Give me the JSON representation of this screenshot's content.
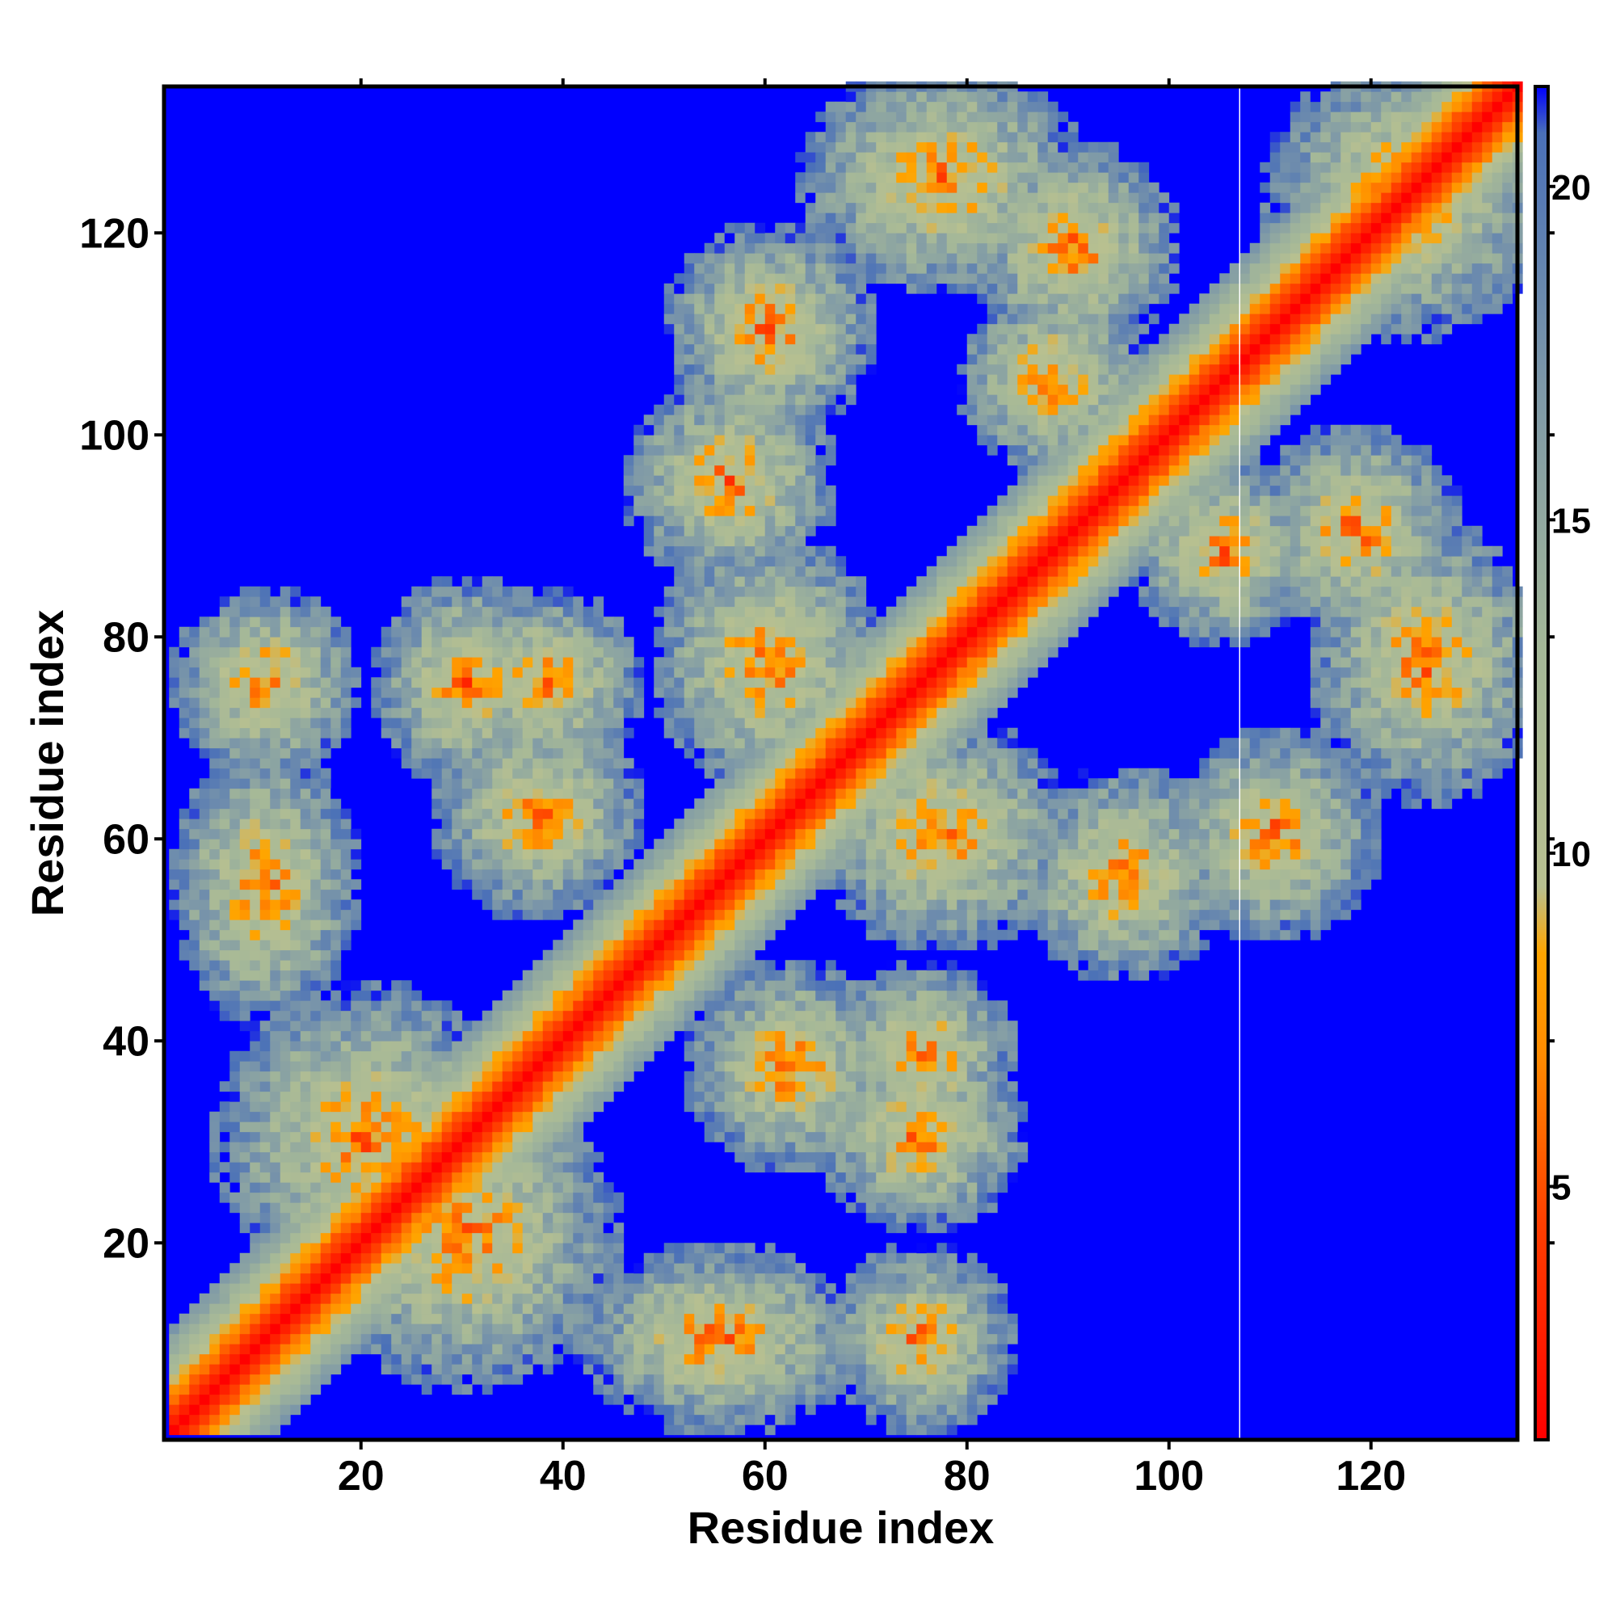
{
  "chart_data": {
    "type": "heatmap",
    "title": "",
    "xlabel": "Residue index",
    "ylabel": "Residue index",
    "n_residues": 134,
    "xlim": [
      1,
      134
    ],
    "ylim": [
      1,
      134
    ],
    "x_ticks": [
      20,
      40,
      60,
      80,
      100,
      120
    ],
    "y_ticks": [
      20,
      40,
      60,
      80,
      100,
      120
    ],
    "colorbar": {
      "ticks": [
        5,
        10,
        15,
        20
      ],
      "range": [
        1.2,
        21.5
      ],
      "stops": [
        {
          "value": 1.2,
          "color": "#ff0000"
        },
        {
          "value": 4.5,
          "color": "#ff4000"
        },
        {
          "value": 7.0,
          "color": "#ff8c00"
        },
        {
          "value": 8.5,
          "color": "#ffa500"
        },
        {
          "value": 9.5,
          "color": "#b8c090"
        },
        {
          "value": 13.0,
          "color": "#a5b898"
        },
        {
          "value": 17.0,
          "color": "#7d98a8"
        },
        {
          "value": 20.8,
          "color": "#4a70b8"
        },
        {
          "value": 21.5,
          "color": "#0000ff"
        }
      ]
    },
    "cutoff_value": 21.5,
    "gap_column": 106.5,
    "contact_regions": [
      {
        "x": 30,
        "y": 20,
        "rx": 13,
        "ry": 13
      },
      {
        "x": 20,
        "y": 30,
        "rx": 13,
        "ry": 13
      },
      {
        "x": 55,
        "y": 10,
        "rx": 12,
        "ry": 8
      },
      {
        "x": 10,
        "y": 55,
        "rx": 8,
        "ry": 12
      },
      {
        "x": 75,
        "y": 30,
        "rx": 9,
        "ry": 8
      },
      {
        "x": 30,
        "y": 75,
        "rx": 8,
        "ry": 9
      },
      {
        "x": 62,
        "y": 37,
        "rx": 9,
        "ry": 9
      },
      {
        "x": 37,
        "y": 62,
        "rx": 9,
        "ry": 9
      },
      {
        "x": 75,
        "y": 38,
        "rx": 8,
        "ry": 8
      },
      {
        "x": 38,
        "y": 75,
        "rx": 8,
        "ry": 8
      },
      {
        "x": 77,
        "y": 60,
        "rx": 11,
        "ry": 10
      },
      {
        "x": 60,
        "y": 77,
        "rx": 10,
        "ry": 11
      },
      {
        "x": 95,
        "y": 56,
        "rx": 9,
        "ry": 9
      },
      {
        "x": 56,
        "y": 95,
        "rx": 9,
        "ry": 9
      },
      {
        "x": 110,
        "y": 60,
        "rx": 9,
        "ry": 9
      },
      {
        "x": 60,
        "y": 110,
        "rx": 9,
        "ry": 9
      },
      {
        "x": 125,
        "y": 77,
        "rx": 10,
        "ry": 12
      },
      {
        "x": 77,
        "y": 125,
        "rx": 12,
        "ry": 10
      },
      {
        "x": 118,
        "y": 90,
        "rx": 9,
        "ry": 9
      },
      {
        "x": 90,
        "y": 118,
        "rx": 9,
        "ry": 9
      },
      {
        "x": 123,
        "y": 123,
        "rx": 12,
        "ry": 12
      },
      {
        "x": 88,
        "y": 105,
        "rx": 8,
        "ry": 8
      },
      {
        "x": 105,
        "y": 88,
        "rx": 8,
        "ry": 8
      },
      {
        "x": 10,
        "y": 75,
        "rx": 8,
        "ry": 8
      },
      {
        "x": 75,
        "y": 10,
        "rx": 8,
        "ry": 8
      }
    ]
  }
}
